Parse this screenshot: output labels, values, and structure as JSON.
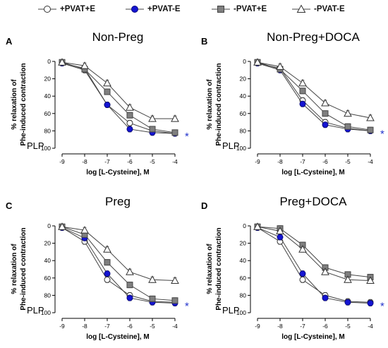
{
  "legend": [
    {
      "label": "+PVAT+E",
      "marker": "circle-open"
    },
    {
      "label": "+PVAT-E",
      "marker": "circle-filled"
    },
    {
      "label": "-PVAT+E",
      "marker": "square-gray"
    },
    {
      "label": "-PVAT-E",
      "marker": "triangle-open"
    }
  ],
  "colors": {
    "circle_filled": "#1414d2",
    "square": "#7f7f7f",
    "star": "#2233cc",
    "line": "#444444"
  },
  "chart_data": [
    {
      "type": "line",
      "panel_label": "A",
      "title": "Non-Preg",
      "xlabel": "log [L-Cysteine], M",
      "ylabel": [
        "% relaxation of",
        "Phe-induced contraction"
      ],
      "annotation": "PLP",
      "significance": "*",
      "x": [
        -9,
        -8,
        -7,
        -6,
        -5,
        -4
      ],
      "xlim": [
        -9,
        -4
      ],
      "ylim": [
        0,
        100
      ],
      "y_reversed": true,
      "x_ticks": [
        "-9",
        "-8",
        "-7",
        "-6",
        "-5",
        "-4"
      ],
      "y_ticks": [
        "0",
        "20",
        "40",
        "60",
        "80",
        "100"
      ],
      "series": [
        {
          "name": "+PVAT+E",
          "marker": "circle-open",
          "values": [
            2,
            10,
            50,
            71,
            80,
            83
          ]
        },
        {
          "name": "+PVAT-E",
          "marker": "circle-filled",
          "values": [
            2,
            8,
            50,
            78,
            82,
            83
          ]
        },
        {
          "name": "-PVAT+E",
          "marker": "square-gray",
          "values": [
            1,
            9,
            35,
            62,
            78,
            82
          ]
        },
        {
          "name": "-PVAT-E",
          "marker": "triangle-open",
          "values": [
            1,
            5,
            25,
            53,
            66,
            66
          ]
        }
      ]
    },
    {
      "type": "line",
      "panel_label": "B",
      "title": "Non-Preg+DOCA",
      "xlabel": "log [L-Cysteine], M",
      "ylabel": [
        "% relaxation of",
        "Phe-induced contraction"
      ],
      "annotation": "PLP",
      "significance": "*",
      "x": [
        -9,
        -8,
        -7,
        -6,
        -5,
        -4
      ],
      "xlim": [
        -9,
        -4
      ],
      "ylim": [
        0,
        100
      ],
      "y_reversed": true,
      "x_ticks": [
        "-9",
        "-8",
        "-7",
        "-6",
        "-5",
        "-4"
      ],
      "y_ticks": [
        "0",
        "20",
        "40",
        "60",
        "80",
        "100"
      ],
      "series": [
        {
          "name": "+PVAT+E",
          "marker": "circle-open",
          "values": [
            2,
            8,
            45,
            70,
            77,
            80
          ]
        },
        {
          "name": "+PVAT-E",
          "marker": "circle-filled",
          "values": [
            2,
            10,
            49,
            73,
            78,
            80
          ]
        },
        {
          "name": "-PVAT+E",
          "marker": "square-gray",
          "values": [
            1,
            9,
            34,
            60,
            75,
            79
          ]
        },
        {
          "name": "-PVAT-E",
          "marker": "triangle-open",
          "values": [
            1,
            6,
            25,
            48,
            60,
            65
          ]
        }
      ]
    },
    {
      "type": "line",
      "panel_label": "C",
      "title": "Preg",
      "xlabel": "log [L-Cysteine], M",
      "ylabel": [
        "% relaxation of",
        "Phe-induced contraction"
      ],
      "annotation": "PLP",
      "significance": "*",
      "x": [
        -9,
        -8,
        -7,
        -6,
        -5,
        -4
      ],
      "xlim": [
        -9,
        -4
      ],
      "ylim": [
        0,
        100
      ],
      "y_reversed": true,
      "x_ticks": [
        "-9",
        "-8",
        "-7",
        "-6",
        "-5",
        "-4"
      ],
      "y_ticks": [
        "0",
        "20",
        "40",
        "60",
        "80",
        "100"
      ],
      "series": [
        {
          "name": "+PVAT+E",
          "marker": "circle-open",
          "values": [
            2,
            18,
            62,
            80,
            87,
            88
          ]
        },
        {
          "name": "+PVAT-E",
          "marker": "circle-filled",
          "values": [
            2,
            14,
            55,
            83,
            88,
            89
          ]
        },
        {
          "name": "-PVAT+E",
          "marker": "square-gray",
          "values": [
            1,
            10,
            42,
            68,
            84,
            86
          ]
        },
        {
          "name": "-PVAT-E",
          "marker": "triangle-open",
          "values": [
            1,
            5,
            27,
            53,
            62,
            63
          ]
        }
      ]
    },
    {
      "type": "line",
      "panel_label": "D",
      "title": "Preg+DOCA",
      "xlabel": "log [L-Cysteine], M",
      "ylabel": [
        "% relaxation of",
        "Phe-induced contraction"
      ],
      "annotation": "PLP",
      "significance": "*",
      "x": [
        -9,
        -8,
        -7,
        -6,
        -5,
        -4
      ],
      "xlim": [
        -9,
        -4
      ],
      "ylim": [
        0,
        100
      ],
      "y_reversed": true,
      "x_ticks": [
        "-9",
        "-8",
        "-7",
        "-6",
        "-5",
        "-4"
      ],
      "y_ticks": [
        "0",
        "20",
        "40",
        "60",
        "80",
        "100"
      ],
      "series": [
        {
          "name": "+PVAT+E",
          "marker": "circle-open",
          "values": [
            2,
            18,
            62,
            80,
            87,
            88
          ]
        },
        {
          "name": "+PVAT-E",
          "marker": "circle-filled",
          "values": [
            2,
            13,
            55,
            83,
            88,
            89
          ]
        },
        {
          "name": "-PVAT+E",
          "marker": "square-gray",
          "values": [
            1,
            3,
            22,
            48,
            56,
            59
          ]
        },
        {
          "name": "-PVAT-E",
          "marker": "triangle-open",
          "values": [
            1,
            6,
            27,
            53,
            62,
            63
          ]
        }
      ]
    }
  ]
}
